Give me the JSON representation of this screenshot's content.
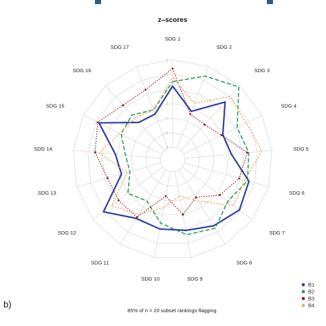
{
  "chart_data": {
    "type": "radar",
    "title": "z–scores",
    "axes": [
      "SDG 1",
      "SDG 2",
      "SDG 3",
      "SDG 4",
      "SDG 5",
      "SDG 6",
      "SDG 7",
      "SDG 8",
      "SDG 9",
      "SDG 10",
      "SDG 11",
      "SDG 12",
      "SDG 13",
      "SDG 14",
      "SDG 15",
      "SDG 16",
      "SDG 17"
    ],
    "rlim": [
      -3,
      3
    ],
    "rings": [
      -3,
      -2,
      -1,
      0,
      1,
      2,
      3
    ],
    "tick_labels": [
      "-3",
      "-2",
      "-1",
      "0",
      "1",
      "2",
      "3"
    ],
    "grid": true,
    "legend_position": "bottom-right",
    "series": [
      {
        "name": "B1",
        "color": "#2e3f9e",
        "dash": "solid",
        "width": 2.2,
        "values": [
          1.2,
          -0.3,
          1.5,
          0.0,
          0.2,
          1.6,
          1.9,
          1.5,
          1.1,
          1.0,
          0.9,
          2.1,
          -0.2,
          0.1,
          1.8,
          -0.4,
          -0.5
        ]
      },
      {
        "name": "B2",
        "color": "#1a9850",
        "dash": "6,3",
        "width": 1.5,
        "values": [
          1.5,
          2.3,
          2.9,
          1.1,
          1.4,
          1.5,
          0.9,
          1.7,
          1.4,
          0.6,
          -0.5,
          0.0,
          -0.8,
          -0.6,
          0.1,
          0.3,
          -0.2
        ]
      },
      {
        "name": "B3",
        "color": "#8b1a1a",
        "dash": "1.5,2",
        "width": 1.3,
        "values": [
          2.4,
          -0.5,
          -0.6,
          -0.1,
          1.3,
          0.9,
          0.2,
          -0.8,
          0.0,
          -1.3,
          0.8,
          0.8,
          0.8,
          1.5,
          1.9,
          1.2,
          1.3
        ]
      },
      {
        "name": "B4",
        "color": "#f4a45e",
        "dash": "2.5,2",
        "width": 1.3,
        "values": [
          1.8,
          0.3,
          2.0,
          1.8,
          2.3,
          1.3,
          1.4,
          -0.5,
          -1.3,
          -0.5,
          0.6,
          1.4,
          -0.6,
          1.2,
          0.2,
          0.0,
          -0.2
        ]
      }
    ],
    "panel_label": "b)",
    "caption": "85% of n = 20 subset rankings flagging"
  }
}
